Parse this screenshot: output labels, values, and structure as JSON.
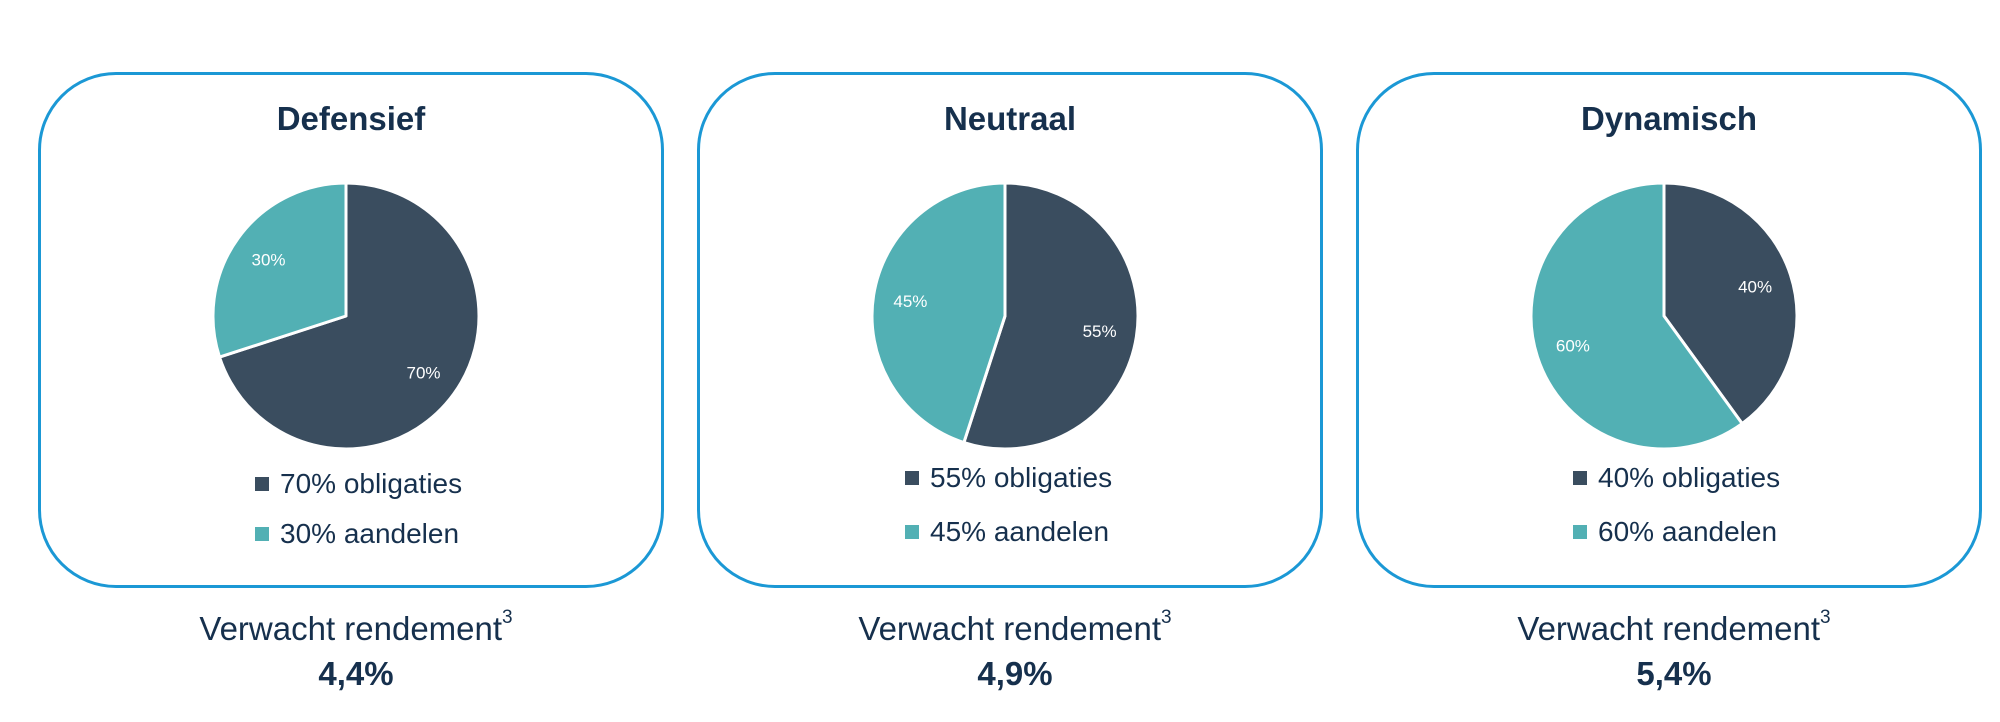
{
  "colors": {
    "obligaties": "#3a4d5f",
    "aandelen": "#52b0b4",
    "border": "#1b98d5",
    "text": "#16304d"
  },
  "return_label": "Verwacht rendement",
  "return_footnote": "3",
  "profiles": [
    {
      "title": "Defensief",
      "slices": [
        {
          "label": "70%",
          "legend": "70% obligaties",
          "value": 70
        },
        {
          "label": "30%",
          "legend": "30% aandelen",
          "value": 30
        }
      ],
      "expected_return": "4,4%"
    },
    {
      "title": "Neutraal",
      "slices": [
        {
          "label": "55%",
          "legend": "55% obligaties",
          "value": 55
        },
        {
          "label": "45%",
          "legend": "45% aandelen",
          "value": 45
        }
      ],
      "expected_return": "4,9%"
    },
    {
      "title": "Dynamisch",
      "slices": [
        {
          "label": "40%",
          "legend": "40% obligaties",
          "value": 40
        },
        {
          "label": "60%",
          "legend": "60% aandelen",
          "value": 60
        }
      ],
      "expected_return": "5,4%"
    }
  ],
  "chart_data": [
    {
      "type": "pie",
      "title": "Defensief",
      "categories": [
        "obligaties",
        "aandelen"
      ],
      "values": [
        70,
        30
      ],
      "legend": [
        "70% obligaties",
        "30% aandelen"
      ]
    },
    {
      "type": "pie",
      "title": "Neutraal",
      "categories": [
        "obligaties",
        "aandelen"
      ],
      "values": [
        55,
        45
      ],
      "legend": [
        "55% obligaties",
        "45% aandelen"
      ]
    },
    {
      "type": "pie",
      "title": "Dynamisch",
      "categories": [
        "obligaties",
        "aandelen"
      ],
      "values": [
        40,
        60
      ],
      "legend": [
        "40% obligaties",
        "60% aandelen"
      ]
    }
  ]
}
